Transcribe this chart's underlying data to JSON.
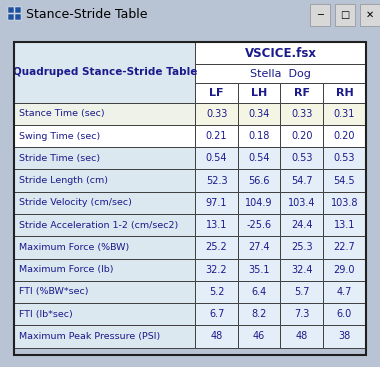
{
  "title_bar": "Stance-Stride Table",
  "header_col1": "Quadruped Stance-Stride Table",
  "header_file": "VSCICE.fsx",
  "header_subject": "Stella  Dog",
  "col_headers": [
    "LF",
    "LH",
    "RF",
    "RH"
  ],
  "row_labels": [
    "Stance Time (sec)",
    "Swing Time (sec)",
    "Stride Time (sec)",
    "Stride Length (cm)",
    "Stride Velocity (cm/sec)",
    "Stride Acceleration 1-2 (cm/sec2)",
    "Maximum Force (%BW)",
    "Maximum Force (lb)",
    "FTI (%BW*sec)",
    "FTI (lb*sec)",
    "Maximum Peak Pressure (PSI)"
  ],
  "data": [
    [
      "0.33",
      "0.34",
      "0.33",
      "0.31"
    ],
    [
      "0.21",
      "0.18",
      "0.20",
      "0.20"
    ],
    [
      "0.54",
      "0.54",
      "0.53",
      "0.53"
    ],
    [
      "52.3",
      "56.6",
      "54.7",
      "54.5"
    ],
    [
      "97.1",
      "104.9",
      "103.4",
      "103.8"
    ],
    [
      "13.1",
      "-25.6",
      "24.4",
      "13.1"
    ],
    [
      "25.2",
      "27.4",
      "25.3",
      "22.7"
    ],
    [
      "32.2",
      "35.1",
      "32.4",
      "29.0"
    ],
    [
      "5.2",
      "6.4",
      "5.7",
      "4.7"
    ],
    [
      "6.7",
      "8.2",
      "7.3",
      "6.0"
    ],
    [
      "48",
      "46",
      "48",
      "38"
    ]
  ],
  "row_colors_label": [
    "#eef2e8",
    "#ffffff",
    "#dce8f0",
    "#dce8f0",
    "#dce8f0",
    "#dce8f0",
    "#dce8f0",
    "#dce8f0",
    "#dce8f0",
    "#dce8f0",
    "#dce8f0"
  ],
  "row_colors_data": [
    "#f5f5e6",
    "#ffffff",
    "#e4eef8",
    "#e4eef8",
    "#e4eef8",
    "#e4eef8",
    "#e4eef8",
    "#e4eef8",
    "#e4eef8",
    "#e4eef8",
    "#e4eef8"
  ],
  "fig_bg": "#b8c4d4",
  "title_bar_bg": "#eaeaf0",
  "table_outer_bg": "#c8d4e0",
  "text_color": "#1a1a8c",
  "border_color": "#404040",
  "window_btn_colors": [
    "#d0d0d0",
    "#d0d0d0",
    "#d0d0d0"
  ]
}
